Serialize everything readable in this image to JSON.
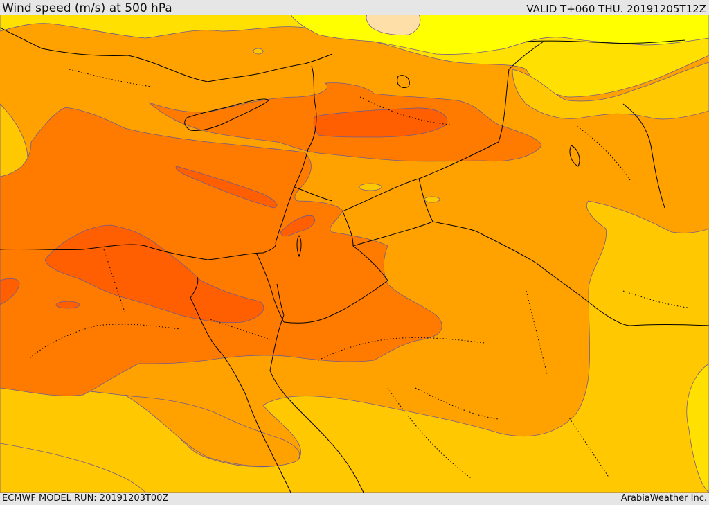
{
  "header": {
    "title": "Wind speed (m/s) at 500 hPa",
    "valid": "VALID T+060 THU. 20191205T12Z"
  },
  "footer": {
    "model_run": "ECMWF MODEL RUN: 20191203T00Z",
    "credit": "ArabiaWeather Inc."
  },
  "map": {
    "field": "wind speed at 500 hPa",
    "palette": {
      "band_20_25": "#ffff00",
      "band_25_30": "#ffe000",
      "band_30_35": "#ffc800",
      "band_35_40": "#ffa200",
      "band_40_45": "#ff7b00",
      "band_45_50": "#ff5f00",
      "pocket_low": "#ffdfa8",
      "contour_line": "#6f5a8f",
      "border_line": "#000000"
    }
  }
}
